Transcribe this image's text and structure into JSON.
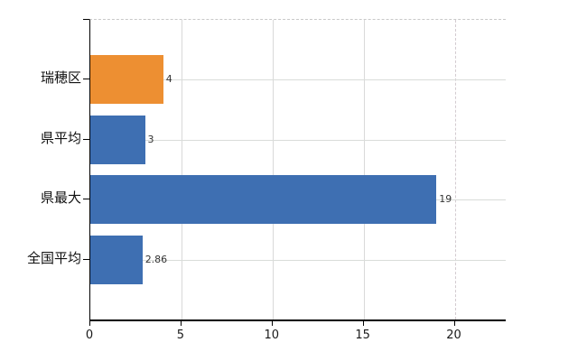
{
  "chart_data": {
    "type": "bar",
    "orientation": "horizontal",
    "title": "",
    "categories": [
      "瑞穂区",
      "県平均",
      "県最大",
      "全国平均"
    ],
    "values": [
      4,
      3,
      19,
      2.86
    ],
    "value_labels": [
      "4",
      "3",
      "19",
      "2.86"
    ],
    "bar_colors": [
      "#ED8F32",
      "#3E6FB2",
      "#3E6FB2",
      "#3E6FB2"
    ],
    "x_axis": {
      "tick_values": [
        0,
        5,
        10,
        15,
        20
      ],
      "tick_labels": [
        "0",
        "5",
        "10",
        "15",
        "20"
      ],
      "min": 0,
      "max": 22.8
    },
    "gridlines": {
      "vertical_values": [
        5,
        10,
        15,
        20
      ],
      "vertical_dashed_values": [
        20
      ],
      "horizontal_at_category_centers": true,
      "top_border_dashed": true
    },
    "legend": false,
    "colors": {
      "bar_orange": "#ED8F32",
      "bar_blue": "#3E6FB2",
      "grid": "#D9D9D9",
      "axis": "#000000",
      "top_border": "#C9C9C9",
      "value_label": "#333333",
      "category_label": "#111111",
      "background": "#FFFFFF"
    }
  }
}
